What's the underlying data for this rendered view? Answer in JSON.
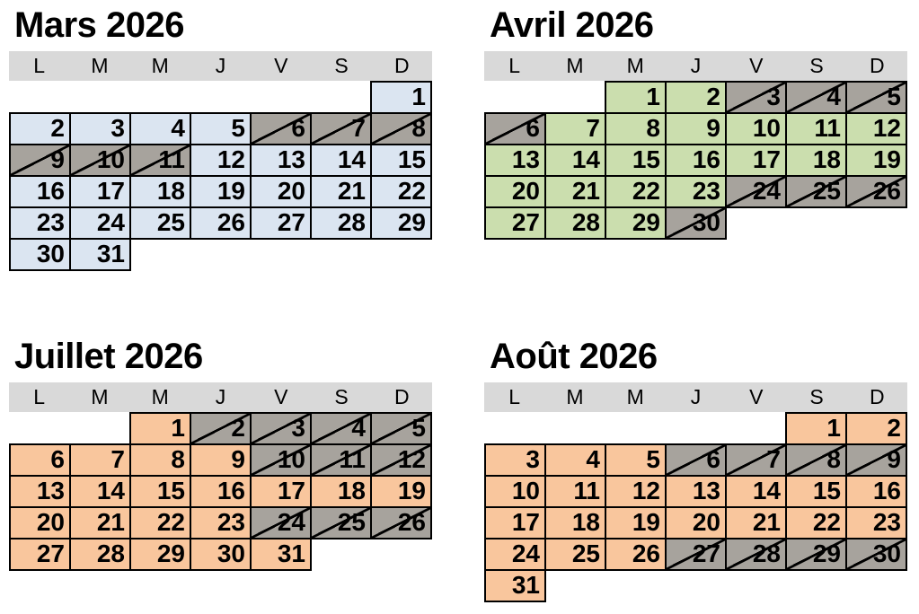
{
  "colors": {
    "page_background": "#ffffff",
    "weekday_band": "#d9d9d9",
    "grid_border": "#000000",
    "unavailable_fill": "#a7a39d",
    "unavailable_slash": "#000000",
    "mars_fill": "#dbe5f1",
    "avril_fill": "#cbdeae",
    "juillet_fill": "#f9c69d",
    "aout_fill": "#f9c69d"
  },
  "calendars": [
    {
      "title": "Mars 2026",
      "fill": "#dbe5f1",
      "day_headers": [
        "L",
        "M",
        "M",
        "J",
        "V",
        "S",
        "D"
      ],
      "weeks": [
        [
          null,
          null,
          null,
          null,
          null,
          null,
          {
            "d": 1,
            "x": false
          }
        ],
        [
          {
            "d": 2,
            "x": false
          },
          {
            "d": 3,
            "x": false
          },
          {
            "d": 4,
            "x": false
          },
          {
            "d": 5,
            "x": false
          },
          {
            "d": 6,
            "x": true
          },
          {
            "d": 7,
            "x": true
          },
          {
            "d": 8,
            "x": true
          }
        ],
        [
          {
            "d": 9,
            "x": true
          },
          {
            "d": 10,
            "x": true
          },
          {
            "d": 11,
            "x": true
          },
          {
            "d": 12,
            "x": false
          },
          {
            "d": 13,
            "x": false
          },
          {
            "d": 14,
            "x": false
          },
          {
            "d": 15,
            "x": false
          }
        ],
        [
          {
            "d": 16,
            "x": false
          },
          {
            "d": 17,
            "x": false
          },
          {
            "d": 18,
            "x": false
          },
          {
            "d": 19,
            "x": false
          },
          {
            "d": 20,
            "x": false
          },
          {
            "d": 21,
            "x": false
          },
          {
            "d": 22,
            "x": false
          }
        ],
        [
          {
            "d": 23,
            "x": false
          },
          {
            "d": 24,
            "x": false
          },
          {
            "d": 25,
            "x": false
          },
          {
            "d": 26,
            "x": false
          },
          {
            "d": 27,
            "x": false
          },
          {
            "d": 28,
            "x": false
          },
          {
            "d": 29,
            "x": false
          }
        ],
        [
          {
            "d": 30,
            "x": false
          },
          {
            "d": 31,
            "x": false
          },
          null,
          null,
          null,
          null,
          null
        ]
      ]
    },
    {
      "title": "Avril 2026",
      "fill": "#cbdeae",
      "day_headers": [
        "L",
        "M",
        "M",
        "J",
        "V",
        "S",
        "D"
      ],
      "weeks": [
        [
          null,
          null,
          {
            "d": 1,
            "x": false
          },
          {
            "d": 2,
            "x": false
          },
          {
            "d": 3,
            "x": true
          },
          {
            "d": 4,
            "x": true
          },
          {
            "d": 5,
            "x": true
          }
        ],
        [
          {
            "d": 6,
            "x": true
          },
          {
            "d": 7,
            "x": false
          },
          {
            "d": 8,
            "x": false
          },
          {
            "d": 9,
            "x": false
          },
          {
            "d": 10,
            "x": false
          },
          {
            "d": 11,
            "x": false
          },
          {
            "d": 12,
            "x": false
          }
        ],
        [
          {
            "d": 13,
            "x": false
          },
          {
            "d": 14,
            "x": false
          },
          {
            "d": 15,
            "x": false
          },
          {
            "d": 16,
            "x": false
          },
          {
            "d": 17,
            "x": false
          },
          {
            "d": 18,
            "x": false
          },
          {
            "d": 19,
            "x": false
          }
        ],
        [
          {
            "d": 20,
            "x": false
          },
          {
            "d": 21,
            "x": false
          },
          {
            "d": 22,
            "x": false
          },
          {
            "d": 23,
            "x": false
          },
          {
            "d": 24,
            "x": true
          },
          {
            "d": 25,
            "x": true
          },
          {
            "d": 26,
            "x": true
          }
        ],
        [
          {
            "d": 27,
            "x": false
          },
          {
            "d": 28,
            "x": false
          },
          {
            "d": 29,
            "x": false
          },
          {
            "d": 30,
            "x": true
          },
          null,
          null,
          null
        ]
      ]
    },
    {
      "title": "Juillet 2026",
      "fill": "#f9c69d",
      "day_headers": [
        "L",
        "M",
        "M",
        "J",
        "V",
        "S",
        "D"
      ],
      "weeks": [
        [
          null,
          null,
          {
            "d": 1,
            "x": false
          },
          {
            "d": 2,
            "x": true
          },
          {
            "d": 3,
            "x": true
          },
          {
            "d": 4,
            "x": true
          },
          {
            "d": 5,
            "x": true
          }
        ],
        [
          {
            "d": 6,
            "x": false
          },
          {
            "d": 7,
            "x": false
          },
          {
            "d": 8,
            "x": false
          },
          {
            "d": 9,
            "x": false
          },
          {
            "d": 10,
            "x": true
          },
          {
            "d": 11,
            "x": true
          },
          {
            "d": 12,
            "x": true
          }
        ],
        [
          {
            "d": 13,
            "x": false
          },
          {
            "d": 14,
            "x": false
          },
          {
            "d": 15,
            "x": false
          },
          {
            "d": 16,
            "x": false
          },
          {
            "d": 17,
            "x": false
          },
          {
            "d": 18,
            "x": false
          },
          {
            "d": 19,
            "x": false
          }
        ],
        [
          {
            "d": 20,
            "x": false
          },
          {
            "d": 21,
            "x": false
          },
          {
            "d": 22,
            "x": false
          },
          {
            "d": 23,
            "x": false
          },
          {
            "d": 24,
            "x": true
          },
          {
            "d": 25,
            "x": true
          },
          {
            "d": 26,
            "x": true
          }
        ],
        [
          {
            "d": 27,
            "x": false
          },
          {
            "d": 28,
            "x": false
          },
          {
            "d": 29,
            "x": false
          },
          {
            "d": 30,
            "x": false
          },
          {
            "d": 31,
            "x": false
          },
          null,
          null
        ]
      ]
    },
    {
      "title": "Août 2026",
      "fill": "#f9c69d",
      "day_headers": [
        "L",
        "M",
        "M",
        "J",
        "V",
        "S",
        "D"
      ],
      "weeks": [
        [
          null,
          null,
          null,
          null,
          null,
          {
            "d": 1,
            "x": false
          },
          {
            "d": 2,
            "x": false
          }
        ],
        [
          {
            "d": 3,
            "x": false
          },
          {
            "d": 4,
            "x": false
          },
          {
            "d": 5,
            "x": false
          },
          {
            "d": 6,
            "x": true
          },
          {
            "d": 7,
            "x": true
          },
          {
            "d": 8,
            "x": true
          },
          {
            "d": 9,
            "x": true
          }
        ],
        [
          {
            "d": 10,
            "x": false
          },
          {
            "d": 11,
            "x": false
          },
          {
            "d": 12,
            "x": false
          },
          {
            "d": 13,
            "x": false
          },
          {
            "d": 14,
            "x": false
          },
          {
            "d": 15,
            "x": false
          },
          {
            "d": 16,
            "x": false
          }
        ],
        [
          {
            "d": 17,
            "x": false
          },
          {
            "d": 18,
            "x": false
          },
          {
            "d": 19,
            "x": false
          },
          {
            "d": 20,
            "x": false
          },
          {
            "d": 21,
            "x": false
          },
          {
            "d": 22,
            "x": false
          },
          {
            "d": 23,
            "x": false
          }
        ],
        [
          {
            "d": 24,
            "x": false
          },
          {
            "d": 25,
            "x": false
          },
          {
            "d": 26,
            "x": false
          },
          {
            "d": 27,
            "x": true
          },
          {
            "d": 28,
            "x": true
          },
          {
            "d": 29,
            "x": true
          },
          {
            "d": 30,
            "x": true
          }
        ],
        [
          {
            "d": 31,
            "x": false
          },
          null,
          null,
          null,
          null,
          null,
          null
        ]
      ]
    }
  ]
}
